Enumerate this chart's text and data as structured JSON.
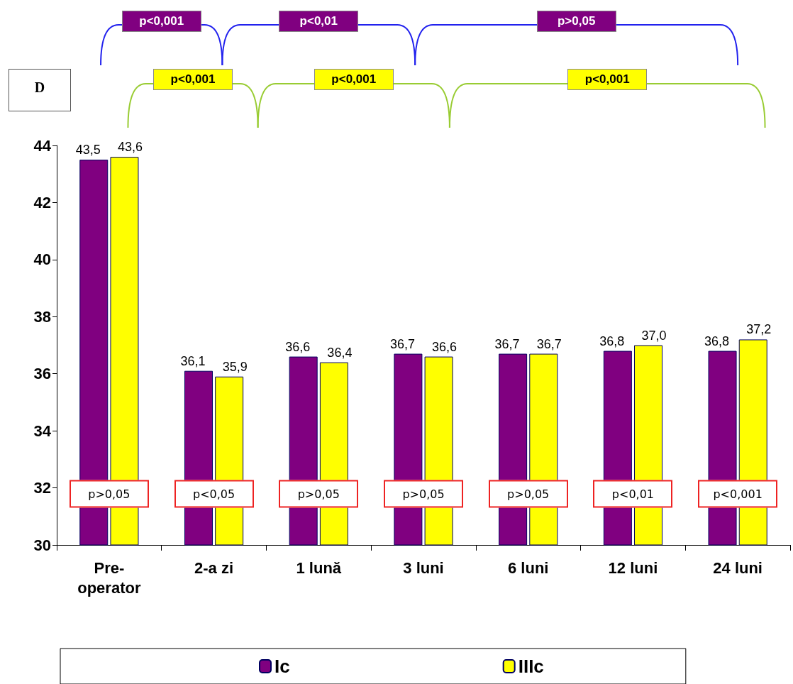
{
  "chart_data": {
    "type": "bar",
    "categories": [
      "Pre-\noperator",
      "2-a zi",
      "1 lună",
      "3 luni",
      "6 luni",
      "12 luni",
      "24 luni"
    ],
    "series": [
      {
        "name": "Ic",
        "color": "#800080",
        "values": [
          43.5,
          36.1,
          36.6,
          36.7,
          36.7,
          36.8,
          36.8
        ],
        "value_labels": [
          "43,5",
          "36,1",
          "36,6",
          "36,7",
          "36,7",
          "36,8",
          "36,8"
        ]
      },
      {
        "name": "IIIc",
        "color": "#ffff00",
        "values": [
          43.6,
          35.9,
          36.4,
          36.6,
          36.7,
          37.0,
          37.2
        ],
        "value_labels": [
          "43,6",
          "35,9",
          "36,4",
          "36,6",
          "36,7",
          "37,0",
          "37,2"
        ]
      }
    ],
    "ylim": [
      30,
      44
    ],
    "yticks": [
      30,
      32,
      34,
      36,
      38,
      40,
      42,
      44
    ],
    "grid": false,
    "legend": "bottom",
    "annotations": [
      "D",
      "p<0,001",
      "p<0,01",
      "p>0,05",
      "p<0,001",
      "p<0,001",
      "p<0,001",
      {
        "text": "p>0,05",
        "x": "Pre-\noperator",
        "y": 32
      },
      {
        "text": "p<0,05",
        "x": "2-a zi",
        "y": 32
      },
      {
        "text": "p>0,05",
        "x": "1 lună",
        "y": 32
      },
      {
        "text": "p>0,05",
        "x": "3 luni",
        "y": 32
      },
      {
        "text": "p>0,05",
        "x": "6 luni",
        "y": 32
      },
      {
        "text": "p<0,01",
        "x": "12 luni",
        "y": 32
      },
      {
        "text": "p<0,001",
        "x": "24 luni",
        "y": 32
      }
    ]
  }
}
